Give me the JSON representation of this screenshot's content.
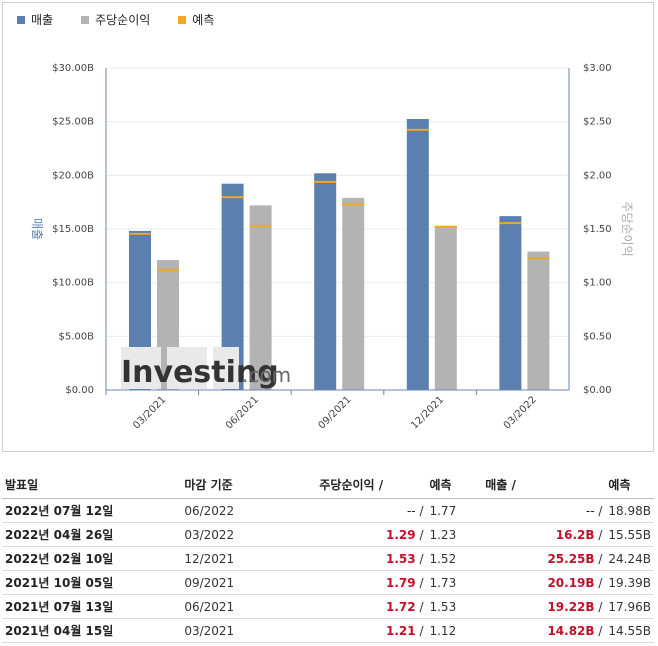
{
  "legend": [
    {
      "label": "매출",
      "color": "#5b7faf"
    },
    {
      "label": "주당순이익",
      "color": "#b3b3b3"
    },
    {
      "label": "예측",
      "color": "#f0a81e"
    }
  ],
  "watermark": {
    "brand": "Investing",
    "suffix": ".com"
  },
  "chart_data": {
    "type": "bar",
    "categories": [
      "03/2021",
      "06/2021",
      "09/2021",
      "12/2021",
      "03/2022"
    ],
    "series": [
      {
        "name": "매출",
        "axis": "left",
        "values": [
          14.82,
          19.22,
          20.19,
          25.25,
          16.2
        ],
        "forecast": [
          14.55,
          17.96,
          19.39,
          24.24,
          15.55
        ]
      },
      {
        "name": "주당순이익",
        "axis": "right",
        "values": [
          1.21,
          1.72,
          1.79,
          1.53,
          1.29
        ],
        "forecast": [
          1.12,
          1.53,
          1.73,
          1.52,
          1.23
        ]
      }
    ],
    "ylabel": "매출",
    "y2label": "주당순이익",
    "ylim": [
      0,
      30
    ],
    "y2lim": [
      0,
      3
    ],
    "yticks": [
      "$0.00",
      "$5.00B",
      "$10.00B",
      "$15.00B",
      "$20.00B",
      "$25.00B",
      "$30.00B"
    ],
    "y2ticks": [
      "$0.00",
      "$0.50",
      "$1.00",
      "$1.50",
      "$2.00",
      "$2.50",
      "$3.00"
    ],
    "colors": {
      "revenue": "#5b7faf",
      "eps": "#b3b3b3",
      "forecast": "#f0a81e"
    }
  },
  "table": {
    "headers": {
      "date": "발표일",
      "period": "마감 기준",
      "eps": "주당순이익",
      "eps_fc": "예측",
      "rev": "매출",
      "rev_fc": "예측"
    },
    "rows": [
      {
        "date": "2022년 07월 12일",
        "period": "06/2022",
        "eps": "--",
        "eps_fc": "1.77",
        "rev": "--",
        "rev_fc": "18.98B"
      },
      {
        "date": "2022년 04월 26일",
        "period": "03/2022",
        "eps": "1.29",
        "eps_fc": "1.23",
        "rev": "16.2B",
        "rev_fc": "15.55B"
      },
      {
        "date": "2022년 02월 10일",
        "period": "12/2021",
        "eps": "1.53",
        "eps_fc": "1.52",
        "rev": "25.25B",
        "rev_fc": "24.24B"
      },
      {
        "date": "2021년 10월 05일",
        "period": "09/2021",
        "eps": "1.79",
        "eps_fc": "1.73",
        "rev": "20.19B",
        "rev_fc": "19.39B"
      },
      {
        "date": "2021년 07월 13일",
        "period": "06/2021",
        "eps": "1.72",
        "eps_fc": "1.53",
        "rev": "19.22B",
        "rev_fc": "17.96B"
      },
      {
        "date": "2021년 04월 15일",
        "period": "03/2021",
        "eps": "1.21",
        "eps_fc": "1.12",
        "rev": "14.82B",
        "rev_fc": "14.55B"
      }
    ]
  }
}
